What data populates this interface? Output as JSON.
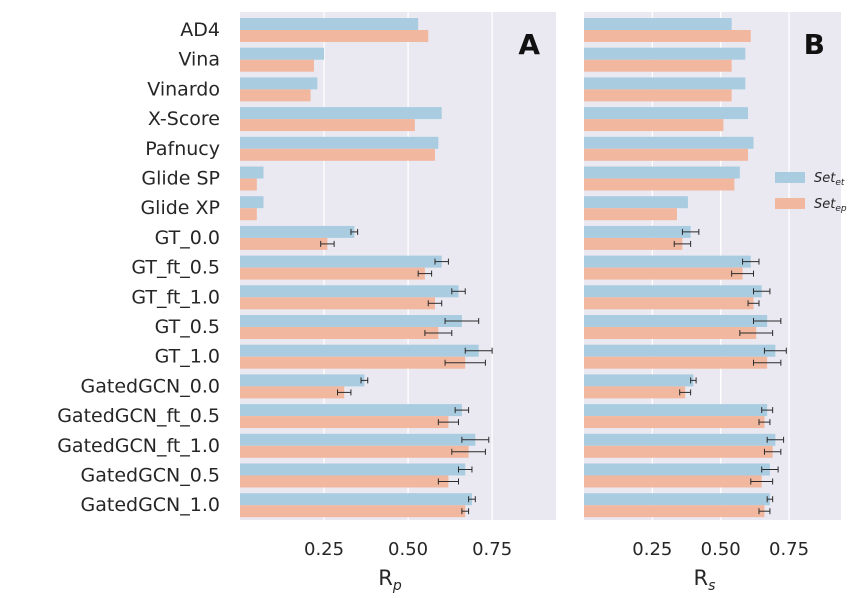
{
  "colors": {
    "background": "#eae9f2",
    "grid": "#ffffff",
    "series_et": "#a9cce0",
    "series_ep": "#f2b79f",
    "errorbar": "#2b2b2b"
  },
  "chart_data": [
    {
      "type": "bar",
      "orientation": "horizontal",
      "panel_label": "A",
      "xlabel_main": "R",
      "xlabel_sub": "p",
      "xlim": [
        0,
        0.94
      ],
      "xticks": [
        0.25,
        0.5,
        0.75
      ],
      "xtick_labels": [
        "0.25",
        "0.50",
        "0.75"
      ],
      "grid": true,
      "categories": [
        "AD4",
        "Vina",
        "Vinardo",
        "X-Score",
        "Pafnucy",
        "Glide SP",
        "Glide XP",
        "GT_0.0",
        "GT_ft_0.5",
        "GT_ft_1.0",
        "GT_0.5",
        "GT_1.0",
        "GatedGCN_0.0",
        "GatedGCN_ft_0.5",
        "GatedGCN_ft_1.0",
        "GatedGCN_0.5",
        "GatedGCN_1.0"
      ],
      "series": [
        {
          "key": "et",
          "values": [
            0.53,
            0.25,
            0.23,
            0.6,
            0.59,
            0.07,
            0.07,
            0.34,
            0.6,
            0.65,
            0.66,
            0.71,
            0.37,
            0.66,
            0.7,
            0.67,
            0.69
          ],
          "errors": [
            null,
            null,
            null,
            null,
            null,
            null,
            null,
            0.01,
            0.02,
            0.02,
            0.05,
            0.04,
            0.01,
            0.02,
            0.04,
            0.02,
            0.01
          ]
        },
        {
          "key": "ep",
          "values": [
            0.56,
            0.22,
            0.21,
            0.52,
            0.58,
            0.05,
            0.05,
            0.26,
            0.55,
            0.58,
            0.59,
            0.67,
            0.31,
            0.62,
            0.68,
            0.62,
            0.67
          ],
          "errors": [
            null,
            null,
            null,
            null,
            null,
            null,
            null,
            0.02,
            0.02,
            0.02,
            0.04,
            0.06,
            0.02,
            0.03,
            0.05,
            0.03,
            0.01
          ]
        }
      ]
    },
    {
      "type": "bar",
      "orientation": "horizontal",
      "panel_label": "B",
      "xlabel_main": "R",
      "xlabel_sub": "s",
      "xlim": [
        0,
        0.94
      ],
      "xticks": [
        0.25,
        0.5,
        0.75
      ],
      "xtick_labels": [
        "0.25",
        "0.50",
        "0.75"
      ],
      "grid": true,
      "legend_position": "right",
      "legend": [
        {
          "key": "et",
          "main": "Set",
          "sub": "et"
        },
        {
          "key": "ep",
          "main": "Set",
          "sub": "ep"
        }
      ],
      "categories": [
        "AD4",
        "Vina",
        "Vinardo",
        "X-Score",
        "Pafnucy",
        "Glide SP",
        "Glide XP",
        "GT_0.0",
        "GT_ft_0.5",
        "GT_ft_1.0",
        "GT_0.5",
        "GT_1.0",
        "GatedGCN_0.0",
        "GatedGCN_ft_0.5",
        "GatedGCN_ft_1.0",
        "GatedGCN_0.5",
        "GatedGCN_1.0"
      ],
      "series": [
        {
          "key": "et",
          "values": [
            0.54,
            0.59,
            0.59,
            0.6,
            0.62,
            0.57,
            0.38,
            0.39,
            0.61,
            0.65,
            0.67,
            0.7,
            0.4,
            0.67,
            0.7,
            0.68,
            0.68
          ],
          "errors": [
            null,
            null,
            null,
            null,
            null,
            null,
            null,
            0.03,
            0.03,
            0.03,
            0.05,
            0.04,
            0.01,
            0.02,
            0.03,
            0.03,
            0.01
          ]
        },
        {
          "key": "ep",
          "values": [
            0.61,
            0.54,
            0.54,
            0.51,
            0.6,
            0.55,
            0.34,
            0.36,
            0.58,
            0.62,
            0.63,
            0.67,
            0.37,
            0.66,
            0.69,
            0.65,
            0.66
          ],
          "errors": [
            null,
            null,
            null,
            null,
            null,
            null,
            null,
            0.03,
            0.04,
            0.02,
            0.06,
            0.05,
            0.02,
            0.02,
            0.03,
            0.04,
            0.02
          ]
        }
      ]
    }
  ]
}
